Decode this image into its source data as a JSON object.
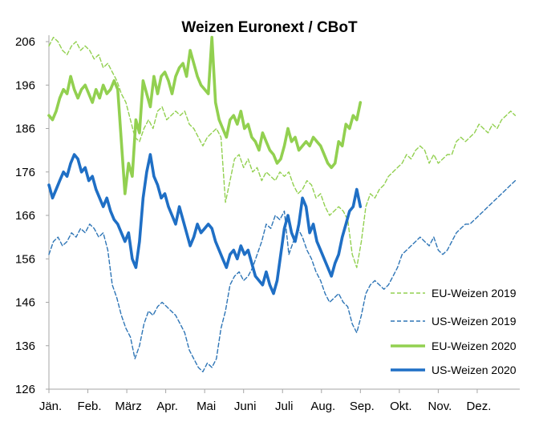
{
  "chart_data": {
    "type": "line",
    "title": "Weizen Euronext / CBoT",
    "xlabel": "",
    "ylabel": "",
    "ylim": [
      126,
      206
    ],
    "yticks": [
      126,
      136,
      146,
      156,
      166,
      176,
      186,
      196,
      206
    ],
    "xlim": [
      0,
      52
    ],
    "xticks": [
      {
        "label": "Jän.",
        "x": 0
      },
      {
        "label": "Feb.",
        "x": 4.3
      },
      {
        "label": "März",
        "x": 8.6
      },
      {
        "label": "Apr.",
        "x": 12.9
      },
      {
        "label": "Mai",
        "x": 17.2
      },
      {
        "label": "Juni",
        "x": 21.5
      },
      {
        "label": "Juli",
        "x": 25.8
      },
      {
        "label": "Aug.",
        "x": 30.1
      },
      {
        "label": "Sep.",
        "x": 34.4
      },
      {
        "label": "Okt.",
        "x": 38.7
      },
      {
        "label": "Nov.",
        "x": 43.0
      },
      {
        "label": "Dez.",
        "x": 47.3
      }
    ],
    "grid": false,
    "legend": "bottom-right",
    "series": [
      {
        "name": "EU-Weizen 2019",
        "color": "#92d050",
        "dash": "dashed",
        "weight": "thin",
        "x": [
          0,
          0.5,
          1,
          1.5,
          2,
          2.5,
          3,
          3.5,
          4,
          4.5,
          5,
          5.5,
          6,
          6.5,
          7,
          7.5,
          8,
          8.5,
          9,
          9.5,
          10,
          10.5,
          11,
          11.5,
          12,
          12.5,
          13,
          13.5,
          14,
          14.5,
          15,
          15.5,
          16,
          16.5,
          17,
          17.5,
          18,
          18.5,
          19,
          19.5,
          20,
          20.5,
          21,
          21.5,
          22,
          22.5,
          23,
          23.5,
          24,
          24.5,
          25,
          25.5,
          26,
          26.5,
          27,
          27.5,
          28,
          28.5,
          29,
          29.5,
          30,
          30.5,
          31,
          31.5,
          32,
          32.5,
          33,
          33.5,
          34,
          34.5,
          35,
          35.5,
          36,
          36.5,
          37,
          37.5,
          38,
          38.5,
          39,
          39.5,
          40,
          40.5,
          41,
          41.5,
          42,
          42.5,
          43,
          43.5,
          44,
          44.5,
          45,
          45.5,
          46,
          46.5,
          47,
          47.5,
          48,
          48.5,
          49,
          49.5,
          50,
          50.5,
          51,
          51.5
        ],
        "values": [
          205,
          207,
          206,
          204,
          203,
          205,
          206,
          204,
          205,
          204,
          202,
          203,
          200,
          201,
          199,
          197,
          194,
          192,
          188,
          184,
          183,
          186,
          188,
          186,
          190,
          191,
          188,
          189,
          190,
          189,
          190,
          187,
          186,
          184,
          182,
          184,
          185,
          186,
          184,
          169,
          174,
          179,
          180,
          177,
          179,
          176,
          177,
          174,
          176,
          175,
          174,
          176,
          175,
          176,
          173,
          171,
          172,
          174,
          173,
          170,
          171,
          168,
          166,
          167,
          168,
          167,
          165,
          157,
          154,
          160,
          168,
          171,
          170,
          172,
          173,
          175,
          176,
          177,
          178,
          180,
          179,
          181,
          182,
          181,
          178,
          180,
          178,
          179,
          180,
          180,
          183,
          184,
          183,
          184,
          185,
          187,
          186,
          185,
          187,
          186,
          188,
          189,
          190,
          189
        ]
      },
      {
        "name": "US-Weizen 2019",
        "color": "#2e75b6",
        "dash": "dashed",
        "weight": "thin",
        "x": [
          0,
          0.5,
          1,
          1.5,
          2,
          2.5,
          3,
          3.5,
          4,
          4.5,
          5,
          5.5,
          6,
          6.5,
          7,
          7.5,
          8,
          8.5,
          9,
          9.5,
          10,
          10.5,
          11,
          11.5,
          12,
          12.5,
          13,
          13.5,
          14,
          14.5,
          15,
          15.5,
          16,
          16.5,
          17,
          17.5,
          18,
          18.5,
          19,
          19.5,
          20,
          20.5,
          21,
          21.5,
          22,
          22.5,
          23,
          23.5,
          24,
          24.5,
          25,
          25.5,
          26,
          26.5,
          27,
          27.5,
          28,
          28.5,
          29,
          29.5,
          30,
          30.5,
          31,
          31.5,
          32,
          32.5,
          33,
          33.5,
          34,
          34.5,
          35,
          35.5,
          36,
          36.5,
          37,
          37.5,
          38,
          38.5,
          39,
          39.5,
          40,
          40.5,
          41,
          41.5,
          42,
          42.5,
          43,
          43.5,
          44,
          44.5,
          45,
          45.5,
          46,
          46.5,
          47,
          47.5,
          48,
          48.5,
          49,
          49.5,
          50,
          50.5,
          51,
          51.5
        ],
        "values": [
          157,
          160,
          161,
          159,
          160,
          162,
          161,
          163,
          162,
          164,
          163,
          161,
          162,
          158,
          150,
          147,
          143,
          140,
          138,
          133,
          136,
          141,
          144,
          143,
          145,
          146,
          145,
          144,
          143,
          141,
          139,
          135,
          133,
          131,
          130,
          132,
          131,
          133,
          140,
          144,
          150,
          152,
          153,
          151,
          152,
          154,
          157,
          160,
          164,
          163,
          166,
          165,
          167,
          157,
          160,
          163,
          161,
          158,
          156,
          153,
          151,
          148,
          146,
          147,
          148,
          146,
          145,
          141,
          139,
          143,
          148,
          150,
          151,
          150,
          149,
          150,
          152,
          154,
          157,
          158,
          159,
          160,
          161,
          160,
          159,
          161,
          158,
          157,
          158,
          160,
          162,
          163,
          164,
          164,
          165,
          166,
          167,
          168,
          169,
          170,
          171,
          172,
          173,
          174
        ]
      },
      {
        "name": "EU-Weizen 2020",
        "color": "#92d050",
        "dash": "solid",
        "weight": "thick",
        "x": [
          0,
          0.4,
          0.8,
          1.2,
          1.6,
          2,
          2.4,
          2.8,
          3.2,
          3.6,
          4,
          4.4,
          4.8,
          5.2,
          5.6,
          6,
          6.4,
          6.8,
          7.2,
          7.6,
          8,
          8.4,
          8.8,
          9.2,
          9.6,
          10,
          10.4,
          10.8,
          11.2,
          11.6,
          12,
          12.4,
          12.8,
          13.2,
          13.6,
          14,
          14.4,
          14.8,
          15.2,
          15.6,
          16,
          16.4,
          16.8,
          17.2,
          17.6,
          18,
          18.4,
          18.8,
          19.2,
          19.6,
          20,
          20.4,
          20.8,
          21.2,
          21.6,
          22,
          22.4,
          22.8,
          23.2,
          23.6,
          24,
          24.4,
          24.8,
          25.2,
          25.6,
          26,
          26.4,
          26.8,
          27.2,
          27.6,
          28,
          28.4,
          28.8,
          29.2,
          29.6,
          30,
          30.4,
          30.8,
          31.2,
          31.6,
          32,
          32.4,
          32.8,
          33.2,
          33.6,
          34,
          34.4
        ],
        "values": [
          189,
          188,
          190,
          193,
          195,
          194,
          198,
          195,
          193,
          195,
          196,
          194,
          192,
          195,
          193,
          196,
          194,
          195,
          197,
          195,
          183,
          171,
          178,
          175,
          188,
          185,
          197,
          194,
          191,
          198,
          194,
          198,
          199,
          197,
          194,
          198,
          200,
          201,
          198,
          204,
          201,
          198,
          196,
          195,
          194,
          207,
          192,
          188,
          186,
          184,
          188,
          189,
          187,
          190,
          186,
          187,
          184,
          183,
          181,
          185,
          183,
          181,
          180,
          178,
          179,
          182,
          186,
          183,
          184,
          181,
          182,
          183,
          182,
          184,
          183,
          182,
          180,
          178,
          177,
          178,
          183,
          182,
          187,
          186,
          189,
          188,
          192
        ]
      },
      {
        "name": "US-Weizen 2020",
        "color": "#1f6fc5",
        "dash": "solid",
        "weight": "thick",
        "x": [
          0,
          0.4,
          0.8,
          1.2,
          1.6,
          2,
          2.4,
          2.8,
          3.2,
          3.6,
          4,
          4.4,
          4.8,
          5.2,
          5.6,
          6,
          6.4,
          6.8,
          7.2,
          7.6,
          8,
          8.4,
          8.8,
          9.2,
          9.6,
          10,
          10.4,
          10.8,
          11.2,
          11.6,
          12,
          12.4,
          12.8,
          13.2,
          13.6,
          14,
          14.4,
          14.8,
          15.2,
          15.6,
          16,
          16.4,
          16.8,
          17.2,
          17.6,
          18,
          18.4,
          18.8,
          19.2,
          19.6,
          20,
          20.4,
          20.8,
          21.2,
          21.6,
          22,
          22.4,
          22.8,
          23.2,
          23.6,
          24,
          24.4,
          24.8,
          25.2,
          25.6,
          26,
          26.4,
          26.8,
          27.2,
          27.6,
          28,
          28.4,
          28.8,
          29.2,
          29.6,
          30,
          30.4,
          30.8,
          31.2,
          31.6,
          32,
          32.4,
          32.8,
          33.2,
          33.6,
          34,
          34.4
        ],
        "values": [
          173,
          170,
          172,
          174,
          176,
          175,
          178,
          180,
          179,
          176,
          177,
          174,
          175,
          172,
          170,
          168,
          170,
          167,
          165,
          164,
          162,
          160,
          162,
          156,
          154,
          160,
          170,
          176,
          180,
          175,
          173,
          170,
          171,
          168,
          166,
          164,
          168,
          165,
          162,
          159,
          161,
          164,
          162,
          163,
          164,
          163,
          160,
          158,
          156,
          154,
          157,
          158,
          156,
          159,
          157,
          158,
          155,
          152,
          151,
          150,
          153,
          150,
          148,
          151,
          157,
          163,
          166,
          162,
          160,
          164,
          170,
          168,
          162,
          164,
          160,
          158,
          156,
          154,
          152,
          155,
          157,
          161,
          164,
          167,
          168,
          172,
          168
        ]
      }
    ]
  }
}
